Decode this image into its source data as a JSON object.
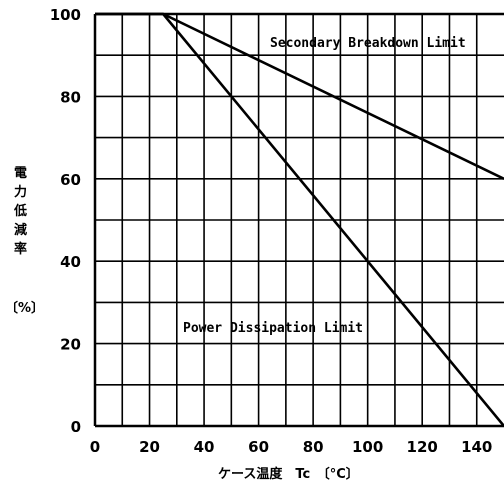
{
  "chart_data": {
    "type": "line",
    "xlabel": "ケース温度　Tc　〔°C〕",
    "ylabel_chars": [
      "電",
      "力",
      "低",
      "減",
      "率"
    ],
    "ylabel_unit": "〔%〕",
    "xlim": [
      0,
      150
    ],
    "ylim": [
      0,
      100
    ],
    "x_ticks": [
      "0",
      "20",
      "40",
      "60",
      "80",
      "100",
      "120",
      "140"
    ],
    "y_ticks": [
      "0",
      "20",
      "40",
      "60",
      "80",
      "100"
    ],
    "x_tick_values": [
      0,
      20,
      40,
      60,
      80,
      100,
      120,
      140
    ],
    "y_tick_values": [
      0,
      20,
      40,
      60,
      80,
      100
    ],
    "grid": true,
    "series": [
      {
        "name": "Secondary Breakdown Limit",
        "x": [
          0,
          25,
          150
        ],
        "y": [
          100,
          100,
          60
        ]
      },
      {
        "name": "Power Dissipation Limit",
        "x": [
          0,
          25,
          150
        ],
        "y": [
          100,
          100,
          0
        ]
      }
    ]
  }
}
